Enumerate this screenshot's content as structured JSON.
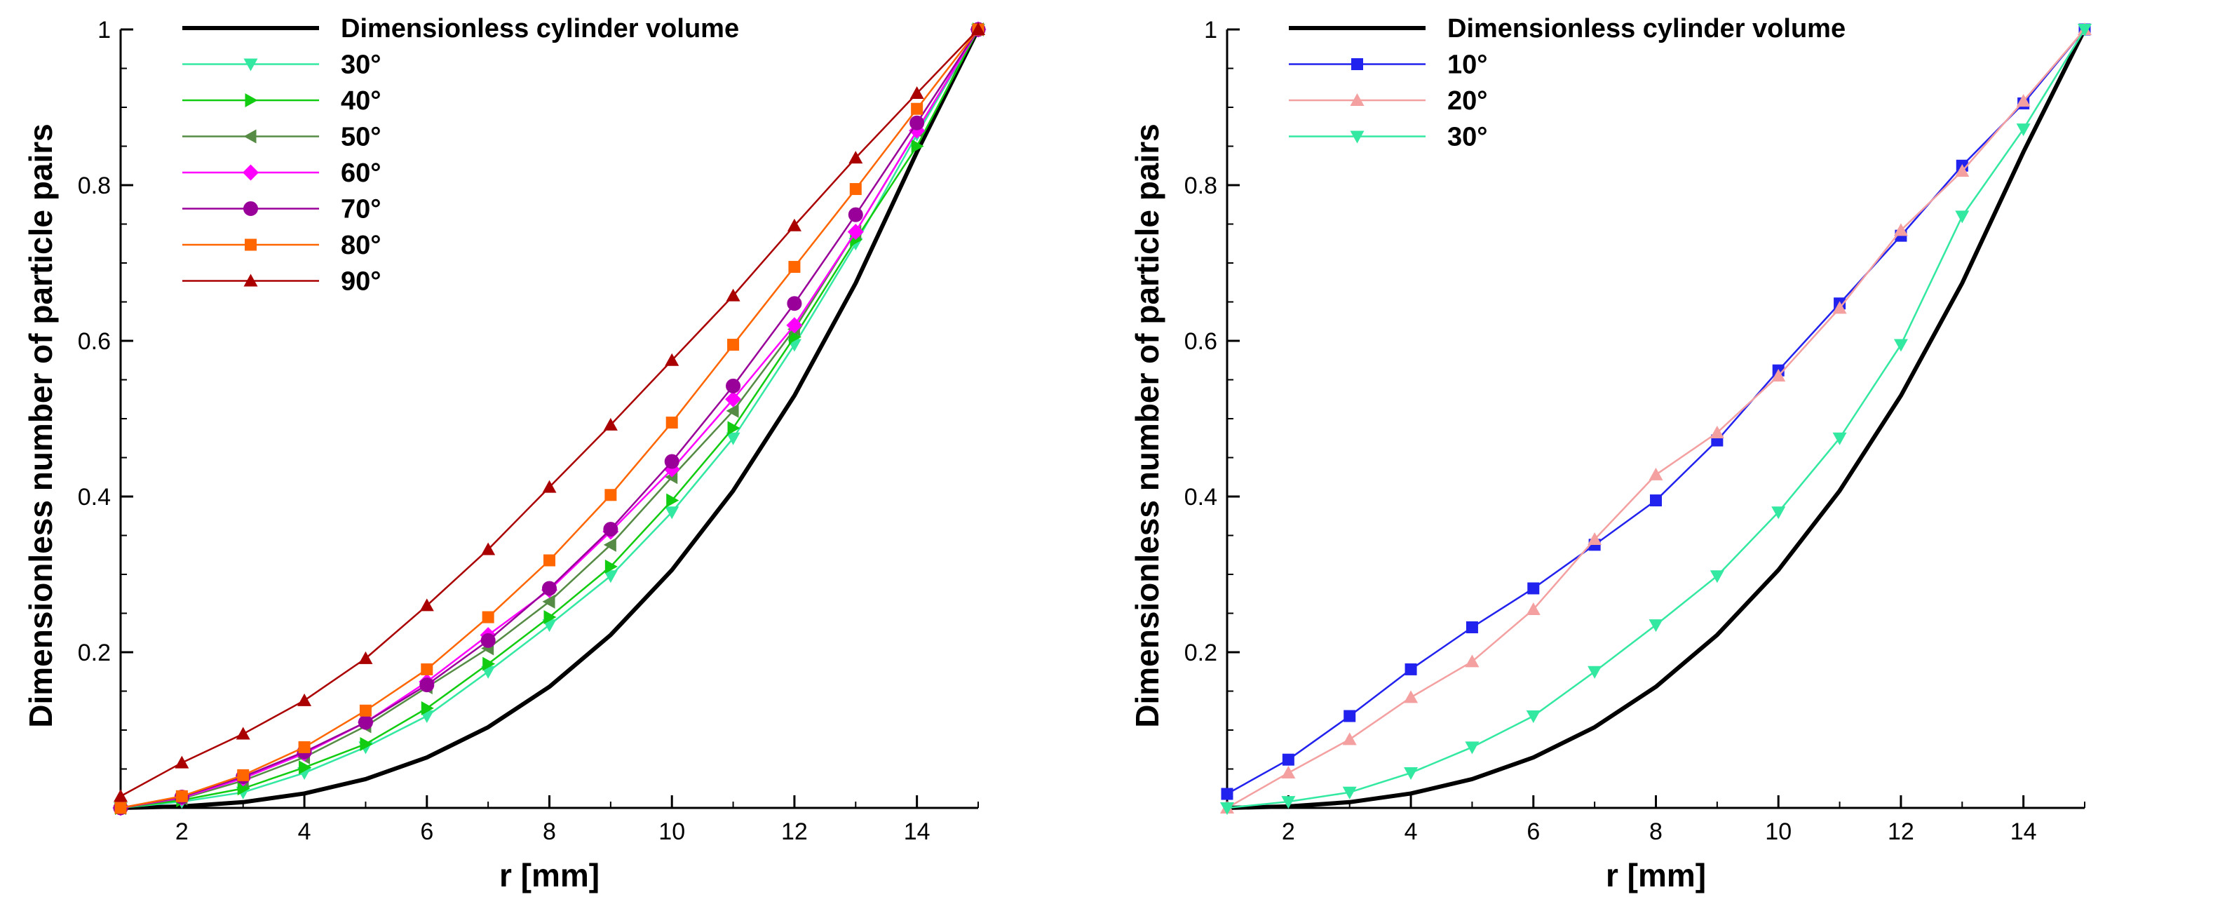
{
  "chart_data": [
    {
      "type": "line",
      "xlabel": "r [mm]",
      "ylabel": "Dimensionless number of particle pairs",
      "xlim": [
        1,
        15
      ],
      "ylim": [
        0,
        1
      ],
      "xticks": [
        2,
        4,
        6,
        8,
        10,
        12,
        14
      ],
      "yticks": [
        0.2,
        0.4,
        0.6,
        0.8,
        1
      ],
      "ytick_labels": [
        "0.2",
        "0.4",
        "0.6",
        "0.8",
        "1"
      ],
      "legend_position": "top-left",
      "x": [
        1,
        2,
        3,
        4,
        5,
        6,
        7,
        8,
        9,
        10,
        11,
        12,
        13,
        14,
        15
      ],
      "series": [
        {
          "name": "Dimensionless cylinder volume",
          "color": "#000000",
          "marker": "none",
          "values": [
            0.0,
            0.0019,
            0.0074,
            0.0185,
            0.037,
            0.0648,
            0.1037,
            0.1556,
            0.2222,
            0.3056,
            0.4074,
            0.5296,
            0.6741,
            0.8426,
            1.0
          ]
        },
        {
          "name": "30°",
          "color": "#33e8a0",
          "marker": "triangle-down",
          "values": [
            0.0,
            0.008,
            0.02,
            0.045,
            0.078,
            0.118,
            0.175,
            0.235,
            0.298,
            0.38,
            0.475,
            0.595,
            0.725,
            0.865,
            1.0
          ]
        },
        {
          "name": "40°",
          "color": "#11cc11",
          "marker": "triangle-right",
          "values": [
            0.0,
            0.01,
            0.025,
            0.052,
            0.082,
            0.128,
            0.185,
            0.245,
            0.31,
            0.395,
            0.488,
            0.605,
            0.73,
            0.85,
            1.0
          ]
        },
        {
          "name": "50°",
          "color": "#558b44",
          "marker": "triangle-left",
          "values": [
            0.0,
            0.012,
            0.035,
            0.065,
            0.105,
            0.155,
            0.205,
            0.265,
            0.338,
            0.425,
            0.51,
            0.615,
            0.74,
            0.87,
            1.0
          ]
        },
        {
          "name": "60°",
          "color": "#ff00ff",
          "marker": "diamond",
          "values": [
            0.0,
            0.013,
            0.038,
            0.07,
            0.11,
            0.162,
            0.222,
            0.28,
            0.355,
            0.435,
            0.525,
            0.62,
            0.74,
            0.87,
            1.0
          ]
        },
        {
          "name": "70°",
          "color": "#990099",
          "marker": "circle",
          "values": [
            0.0,
            0.014,
            0.04,
            0.072,
            0.11,
            0.158,
            0.215,
            0.282,
            0.358,
            0.445,
            0.542,
            0.648,
            0.762,
            0.88,
            1.0
          ]
        },
        {
          "name": "80°",
          "color": "#ff6600",
          "marker": "square",
          "values": [
            0.0,
            0.015,
            0.042,
            0.078,
            0.125,
            0.178,
            0.245,
            0.318,
            0.402,
            0.495,
            0.595,
            0.695,
            0.795,
            0.898,
            1.0
          ]
        },
        {
          "name": "90°",
          "color": "#aa0000",
          "marker": "triangle-up",
          "values": [
            0.015,
            0.058,
            0.095,
            0.138,
            0.192,
            0.26,
            0.332,
            0.412,
            0.492,
            0.575,
            0.658,
            0.748,
            0.835,
            0.918,
            1.0
          ]
        }
      ]
    },
    {
      "type": "line",
      "xlabel": "r [mm]",
      "ylabel": "Dimensionless number of particle pairs",
      "xlim": [
        1,
        15
      ],
      "ylim": [
        0,
        1
      ],
      "xticks": [
        2,
        4,
        6,
        8,
        10,
        12,
        14
      ],
      "yticks": [
        0.2,
        0.4,
        0.6,
        0.8,
        1
      ],
      "ytick_labels": [
        "0.2",
        "0.4",
        "0.6",
        "0.8",
        "1"
      ],
      "legend_position": "top-left",
      "x": [
        1,
        2,
        3,
        4,
        5,
        6,
        7,
        8,
        9,
        10,
        11,
        12,
        13,
        14,
        15
      ],
      "series": [
        {
          "name": "Dimensionless cylinder volume",
          "color": "#000000",
          "marker": "none",
          "values": [
            0.0,
            0.0019,
            0.0074,
            0.0185,
            0.037,
            0.0648,
            0.1037,
            0.1556,
            0.2222,
            0.3056,
            0.4074,
            0.5296,
            0.6741,
            0.8426,
            1.0
          ]
        },
        {
          "name": "10°",
          "color": "#2222ee",
          "marker": "square",
          "values": [
            0.018,
            0.062,
            0.118,
            0.178,
            0.232,
            0.282,
            0.338,
            0.395,
            0.472,
            0.562,
            0.648,
            0.735,
            0.825,
            0.905,
            1.0
          ]
        },
        {
          "name": "20°",
          "color": "#f4a0a0",
          "marker": "triangle-up",
          "values": [
            0.0,
            0.045,
            0.088,
            0.142,
            0.188,
            0.255,
            0.345,
            0.428,
            0.482,
            0.555,
            0.642,
            0.742,
            0.818,
            0.908,
            1.0
          ]
        },
        {
          "name": "30°",
          "color": "#33e8a0",
          "marker": "triangle-down",
          "values": [
            0.0,
            0.008,
            0.02,
            0.045,
            0.078,
            0.118,
            0.175,
            0.235,
            0.298,
            0.38,
            0.475,
            0.595,
            0.76,
            0.872,
            1.0
          ]
        }
      ]
    }
  ]
}
